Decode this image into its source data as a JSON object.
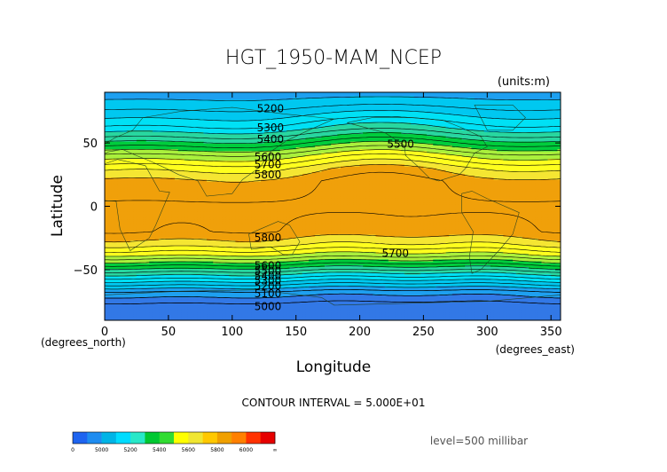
{
  "chart_data": {
    "type": "heatmap",
    "title": "HGT_1950-MAM_NCEP",
    "units": "(units:m)",
    "xlabel": "Longitude",
    "ylabel": "Latitude",
    "x_unit_label": "(degrees_east)",
    "y_unit_label": "(degrees_north)",
    "xlim": [
      0,
      357.5
    ],
    "ylim": [
      -90,
      90
    ],
    "x_ticks": [
      0,
      50,
      100,
      150,
      200,
      250,
      300,
      350
    ],
    "y_ticks": [
      50,
      0,
      -50
    ],
    "contour_interval_text": "CONTOUR INTERVAL = 5.000E+01",
    "level_text": "level=500 millibar",
    "zonal_profile": [
      {
        "lat": 90,
        "value": 5120
      },
      {
        "lat": 80,
        "value": 5180
      },
      {
        "lat": 70,
        "value": 5260
      },
      {
        "lat": 62,
        "value": 5330
      },
      {
        "lat": 55,
        "value": 5420
      },
      {
        "lat": 48,
        "value": 5520
      },
      {
        "lat": 40,
        "value": 5640
      },
      {
        "lat": 30,
        "value": 5760
      },
      {
        "lat": 20,
        "value": 5830
      },
      {
        "lat": 0,
        "value": 5860
      },
      {
        "lat": -20,
        "value": 5840
      },
      {
        "lat": -30,
        "value": 5760
      },
      {
        "lat": -38,
        "value": 5650
      },
      {
        "lat": -45,
        "value": 5520
      },
      {
        "lat": -52,
        "value": 5380
      },
      {
        "lat": -60,
        "value": 5230
      },
      {
        "lat": -68,
        "value": 5080
      },
      {
        "lat": -78,
        "value": 4980
      },
      {
        "lat": -90,
        "value": 4950
      }
    ],
    "contour_labels": [
      {
        "text": "5200",
        "lon": 130,
        "lat": 77
      },
      {
        "text": "5300",
        "lon": 130,
        "lat": 62
      },
      {
        "text": "5400",
        "lon": 130,
        "lat": 53
      },
      {
        "text": "5500",
        "lon": 232,
        "lat": 49
      },
      {
        "text": "5600",
        "lon": 128,
        "lat": 39
      },
      {
        "text": "5700",
        "lon": 128,
        "lat": 33
      },
      {
        "text": "5800",
        "lon": 128,
        "lat": 25
      },
      {
        "text": "5800",
        "lon": 128,
        "lat": -25
      },
      {
        "text": "5700",
        "lon": 228,
        "lat": -37
      },
      {
        "text": "5600",
        "lon": 128,
        "lat": -47
      },
      {
        "text": "5500",
        "lon": 128,
        "lat": -51
      },
      {
        "text": "5400",
        "lon": 128,
        "lat": -55
      },
      {
        "text": "5300",
        "lon": 128,
        "lat": -59
      },
      {
        "text": "5200",
        "lon": 128,
        "lat": -63
      },
      {
        "text": "5100",
        "lon": 128,
        "lat": -69
      },
      {
        "text": "5000",
        "lon": 128,
        "lat": -79
      }
    ],
    "colorbar": {
      "levels": [
        4900,
        5000,
        5100,
        5200,
        5300,
        5400,
        5500,
        5600,
        5700,
        5800,
        5900,
        6000,
        6100,
        6200
      ],
      "tick_labels": [
        "0",
        "5000",
        "5200",
        "5400",
        "5600",
        "5800",
        "6000",
        "∞"
      ],
      "colors": [
        "#1e64f0",
        "#1e8cf0",
        "#00b4e6",
        "#00dcff",
        "#28e8c8",
        "#00c832",
        "#32dc32",
        "#ffff00",
        "#f0e632",
        "#ffc800",
        "#f0a000",
        "#ff8000",
        "#ff3200",
        "#e60000"
      ]
    },
    "colors": {
      "c5000": "#3278e6",
      "c5100": "#1ea0f0",
      "c5200": "#00c8f0",
      "c5300": "#00e1f5",
      "c5400": "#28d7a0",
      "c5500": "#00cd3c",
      "c5600": "#aaf03c",
      "c5700": "#ffff1e",
      "c5800": "#f5e632",
      "c5900": "#f0a00a",
      "land": "#1e3c1e"
    }
  }
}
